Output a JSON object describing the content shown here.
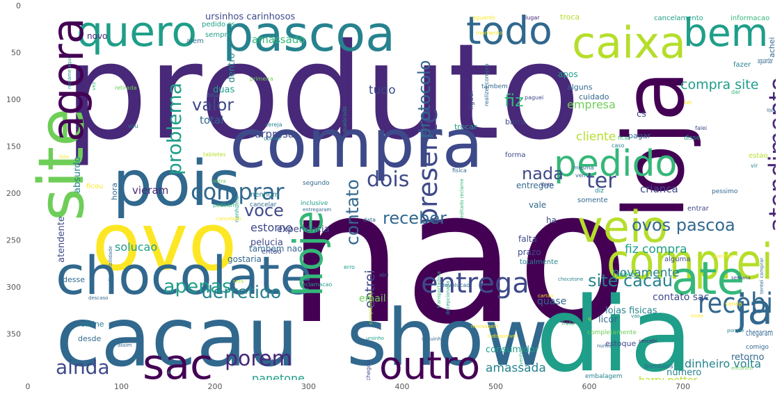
{
  "axes": {
    "x_ticks": [
      "0",
      "100",
      "200",
      "300",
      "400",
      "500",
      "600",
      "700"
    ],
    "y_ticks": [
      "0",
      "50",
      "100",
      "150",
      "200",
      "250",
      "300",
      "350"
    ]
  },
  "palette": [
    "#440154",
    "#482878",
    "#3e4989",
    "#31688e",
    "#26828e",
    "#1f9e89",
    "#35b779",
    "#6ece58",
    "#b5de2b",
    "#fde725"
  ],
  "words": [
    [
      "produto",
      1,
      3
    ],
    [
      "nao",
      0,
      2
    ],
    [
      "loja",
      0,
      1
    ],
    [
      "dia",
      5,
      3
    ],
    [
      "show",
      3,
      1
    ],
    [
      "cacau",
      3,
      1
    ],
    [
      "compra",
      2,
      1
    ],
    [
      "ovo",
      9,
      1
    ],
    [
      "pois",
      3,
      1
    ],
    [
      "pascoa",
      4,
      1
    ],
    [
      "caixa",
      8,
      1
    ],
    [
      "quero",
      5,
      1
    ],
    [
      "bem",
      5,
      1
    ],
    [
      "todo",
      3,
      1
    ],
    [
      "chocolate",
      3,
      1
    ],
    [
      "comprei",
      8,
      1
    ],
    [
      "ate",
      6,
      1
    ],
    [
      "pedido",
      6,
      1
    ],
    [
      "site",
      7,
      2
    ],
    [
      "agora",
      0,
      2
    ],
    [
      "veio",
      8,
      1
    ],
    [
      "sac",
      0,
      1
    ],
    [
      "outro",
      0,
      1
    ],
    [
      "hoje",
      6,
      2
    ],
    [
      "ja",
      3,
      1
    ],
    [
      "entrega",
      2,
      1
    ],
    [
      "recebi",
      3,
      1
    ],
    [
      "atendimento",
      1,
      2
    ],
    [
      "presente",
      2,
      2
    ],
    [
      "dois",
      2,
      1
    ],
    [
      "comprar",
      3,
      1
    ],
    [
      "porem",
      1,
      1
    ],
    [
      "ainda",
      2,
      1
    ],
    [
      "apenas",
      5,
      1
    ],
    [
      "ter",
      2,
      1
    ],
    [
      "voce",
      2,
      1
    ],
    [
      "problema",
      5,
      2
    ],
    [
      "protocolo",
      3,
      2
    ],
    [
      "contato",
      3,
      2
    ],
    [
      "ovos pascoa",
      3,
      1
    ],
    [
      "site cacau",
      4,
      1
    ],
    [
      "derretido",
      4,
      1
    ],
    [
      "receber",
      3,
      1
    ],
    [
      "valor",
      2,
      1
    ],
    [
      "entrei",
      2,
      2
    ],
    [
      "nada",
      2,
      1
    ],
    [
      "fiz",
      6,
      1
    ],
    [
      "compra site",
      5,
      1
    ],
    [
      "tudo",
      2,
      1
    ],
    [
      "estorno",
      2,
      1
    ],
    [
      "amassada",
      4,
      1
    ],
    [
      "novamente",
      4,
      1
    ],
    [
      "fiz compra",
      5,
      1
    ],
    [
      "crianca",
      2,
      1
    ],
    [
      "cliente",
      8,
      1
    ],
    [
      "surpresa",
      2,
      1
    ],
    [
      "panetone",
      5,
      1
    ],
    [
      "dinheiro volta",
      4,
      1
    ],
    [
      "solucao",
      5,
      1
    ],
    [
      "lojas fisicas",
      4,
      1
    ],
    [
      "contato sac",
      2,
      1
    ],
    [
      "email",
      7,
      1
    ],
    [
      "pelucia",
      2,
      1
    ],
    [
      "experiencia",
      2,
      1
    ],
    [
      "vieram",
      1,
      1
    ],
    [
      "atendente",
      2,
      1
    ],
    [
      "amassado",
      6,
      2
    ],
    [
      "ursinhos carinhosos",
      2,
      1
    ],
    [
      "novo",
      1,
      1
    ],
    [
      "absurdo",
      4,
      1
    ],
    [
      "empresa",
      7,
      2
    ],
    [
      "total",
      3,
      1
    ],
    [
      "duas",
      5,
      1
    ],
    [
      "dentro",
      4,
      1
    ],
    [
      "hora",
      3,
      2
    ],
    [
      "tambem nao",
      3,
      2
    ],
    [
      "gostaria",
      3,
      1
    ],
    [
      "quase",
      3,
      1
    ],
    [
      "licor",
      3,
      1
    ],
    [
      "numero",
      4,
      1
    ],
    [
      "harry potter",
      8,
      1
    ],
    [
      "consumidor",
      5,
      1
    ],
    [
      "retorno",
      3,
      1
    ],
    [
      "chegaram",
      3,
      1
    ],
    [
      "cs",
      2,
      1
    ],
    [
      "entregue",
      3,
      1
    ],
    [
      "ha",
      2,
      1
    ],
    [
      "vale",
      3,
      1
    ],
    [
      "falta",
      2,
      1
    ],
    [
      "prazo",
      2,
      1
    ],
    [
      "estoque",
      2,
      1
    ],
    [
      "desde",
      3,
      1
    ],
    [
      "online",
      4,
      1
    ],
    [
      "desse",
      3,
      1
    ],
    [
      "apos",
      5,
      1
    ],
    [
      "alguns",
      3,
      1
    ],
    [
      "cuidado",
      3,
      1
    ],
    [
      "barra",
      2,
      1
    ],
    [
      "liguei",
      2,
      1
    ],
    [
      "trocar",
      5,
      2
    ],
    [
      "pagar",
      3,
      1
    ],
    [
      "aguardar",
      3,
      1
    ],
    [
      "fazer",
      4,
      1
    ],
    [
      "achei",
      3,
      1
    ],
    [
      "troca",
      8,
      2
    ],
    [
      "cancelamento",
      5,
      1
    ],
    [
      "informacao",
      6,
      1
    ],
    [
      "pedido cs",
      5,
      1
    ],
    [
      "sempre",
      5,
      1
    ],
    [
      "alem",
      3,
      1
    ],
    [
      "ano",
      1,
      1
    ],
    [
      "entao",
      2,
      1
    ],
    [
      "alguma",
      2,
      1
    ],
    [
      "sobre",
      5,
      1
    ],
    [
      "somente",
      3,
      1
    ],
    [
      "entrar",
      2,
      1
    ],
    [
      "totalmente",
      4,
      1
    ],
    [
      "forma",
      2,
      1
    ],
    [
      "estao",
      8,
      1
    ],
    [
      "disse",
      5,
      1
    ],
    [
      "reais",
      5,
      1
    ],
    [
      "completamente",
      7,
      2
    ],
    [
      "comigo",
      3,
      1
    ],
    [
      "embalagem",
      4,
      1
    ],
    [
      "bombons",
      3,
      1
    ],
    [
      "chegou",
      2,
      1
    ],
    [
      "ficou",
      9,
      1
    ],
    [
      "nenhum",
      4,
      1
    ],
    [
      "cancelar",
      3,
      1
    ],
    [
      "segundo",
      3,
      1
    ],
    [
      "inclusive",
      5,
      1
    ],
    [
      "data",
      3,
      1
    ],
    [
      "pessimo",
      3,
      1
    ],
    [
      "diz",
      4,
      1
    ],
    [
      "item",
      2,
      1
    ],
    [
      "nenhuma",
      5,
      1
    ],
    [
      "retirada",
      7,
      2
    ],
    [
      "filho",
      3,
      1
    ],
    [
      "primeira",
      7,
      1
    ],
    [
      "comer",
      4,
      1
    ],
    [
      "vou",
      4,
      1
    ],
    [
      "cereja",
      4,
      1
    ],
    [
      "tabletes",
      8,
      1
    ],
    [
      "quebrado",
      4,
      1
    ],
    [
      "realizei compra",
      3,
      2
    ],
    [
      "tambem",
      3,
      2
    ],
    [
      "paguei",
      2,
      1
    ],
    [
      "aguardo",
      9,
      1
    ],
    [
      "lugar",
      1,
      1
    ],
    [
      "momento",
      9,
      1
    ],
    [
      "dar",
      6,
      1
    ],
    [
      "sei",
      9,
      1
    ],
    [
      "minguem",
      3,
      1
    ],
    [
      "falei",
      2,
      1
    ],
    [
      "ficar",
      6,
      1
    ],
    [
      "caso",
      4,
      1
    ],
    [
      "mesma",
      3,
      1
    ],
    [
      "vem",
      3,
      1
    ],
    [
      "fisica",
      3,
      1
    ],
    [
      "vir",
      4,
      1
    ],
    [
      "foto",
      9,
      1
    ],
    [
      "outra",
      7,
      1
    ],
    [
      "pediram",
      6,
      1
    ],
    [
      "cancelado",
      9,
      1
    ],
    [
      "sera",
      8,
      1
    ],
    [
      "erro",
      5,
      1
    ],
    [
      "abri",
      3,
      1
    ],
    [
      "reclamacao",
      5,
      1
    ],
    [
      "devolucao",
      3,
      1
    ],
    [
      "frete",
      6,
      1
    ],
    [
      "chocotone",
      4,
      1
    ],
    [
      "cartao",
      9,
      1
    ],
    [
      "venda",
      9,
      1
    ],
    [
      "semana",
      2,
      1
    ],
    [
      "carinho",
      9,
      1
    ],
    [
      "porque",
      4,
      1
    ],
    [
      "triste",
      9,
      1
    ],
    [
      "vao",
      4,
      1
    ],
    [
      "q",
      8,
      1
    ],
    [
      "encontro",
      7,
      1
    ],
    [
      "nunca",
      3,
      1
    ],
    [
      "assim",
      3,
      1
    ],
    [
      "ai",
      6,
      1
    ],
    [
      "possivel",
      3,
      2
    ],
    [
      "pedi",
      2,
      1
    ],
    [
      "indisponivel",
      9,
      1
    ],
    [
      "percebi",
      1,
      1
    ],
    [
      "mensagem",
      9,
      1
    ],
    [
      "tentei comprar",
      3,
      2
    ],
    [
      "transportadora",
      6,
      2
    ],
    [
      "decepcionada",
      5,
      2
    ],
    [
      "disponibilidade",
      3,
      2
    ],
    [
      "entregaram",
      3,
      1
    ],
    [
      "ursinho",
      5,
      1
    ],
    [
      "descaso",
      3,
      1
    ],
    [
      "vez",
      6,
      2
    ],
    [
      "reclame aqui",
      5,
      2
    ],
    [
      "editado reclame",
      6,
      2
    ],
    [
      "complemento",
      8,
      1
    ],
    [
      "saquinho",
      3,
      1
    ],
    [
      "venho",
      6,
      2
    ]
  ]
}
